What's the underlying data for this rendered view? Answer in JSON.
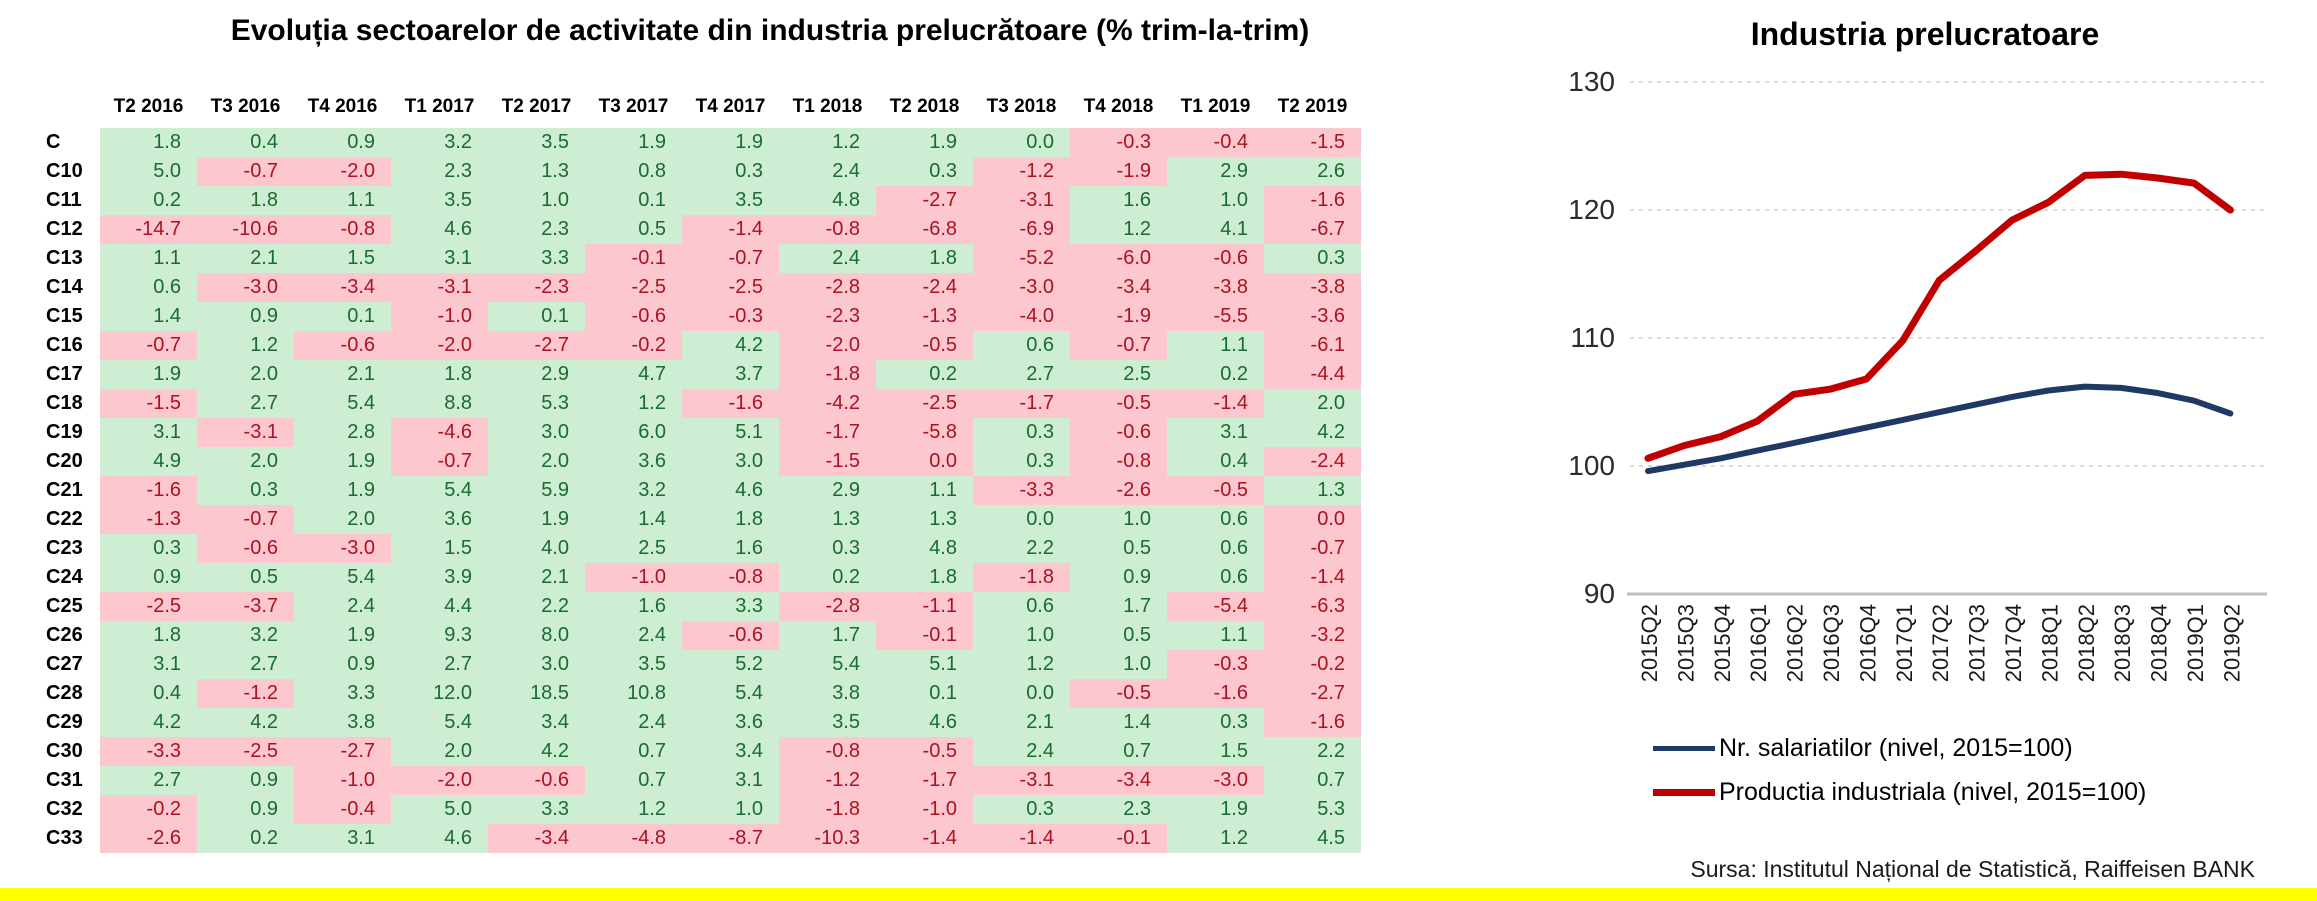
{
  "source_note": "Sursa: Institutul Național de Statistică, Raiffeisen BANK",
  "colors": {
    "positive_bg": "#cdeed3",
    "positive_text": "#1a6b2f",
    "negative_bg": "#fdc7cf",
    "negative_text": "#ac1120",
    "navy": "#1f3864",
    "red": "#c00000",
    "grid_light": "#dcdcdc",
    "axis_line": "#bfbfbf",
    "bottom_bar": "#ffff00"
  },
  "chart_data": [
    {
      "type": "table",
      "title": "Evoluția sectoarelor de activitate din industria prelucrătoare (% trim-la-trim)",
      "columns": [
        "T2 2016",
        "T3 2016",
        "T4 2016",
        "T1 2017",
        "T2 2017",
        "T3 2017",
        "T4 2017",
        "T1 2018",
        "T2 2018",
        "T3 2018",
        "T4 2018",
        "T1 2019",
        "T2 2019"
      ],
      "rows": [
        {
          "label": "C",
          "values": [
            "1.8",
            "0.4",
            "0.9",
            "3.2",
            "3.5",
            "1.9",
            "1.9",
            "1.2",
            "1.9",
            "0.0",
            "-0.3",
            "-0.4",
            "-1.5"
          ]
        },
        {
          "label": "C10",
          "values": [
            "5.0",
            "-0.7",
            "-2.0",
            "2.3",
            "1.3",
            "0.8",
            "0.3",
            "2.4",
            "0.3",
            "-1.2",
            "-1.9",
            "2.9",
            "2.6"
          ]
        },
        {
          "label": "C11",
          "values": [
            "0.2",
            "1.8",
            "1.1",
            "3.5",
            "1.0",
            "0.1",
            "3.5",
            "4.8",
            "-2.7",
            "-3.1",
            "1.6",
            "1.0",
            "-1.6"
          ]
        },
        {
          "label": "C12",
          "values": [
            "-14.7",
            "-10.6",
            "-0.8",
            "4.6",
            "2.3",
            "0.5",
            "-1.4",
            "-0.8",
            "-6.8",
            "-6.9",
            "1.2",
            "4.1",
            "-6.7"
          ]
        },
        {
          "label": "C13",
          "values": [
            "1.1",
            "2.1",
            "1.5",
            "3.1",
            "3.3",
            "-0.1",
            "-0.7",
            "2.4",
            "1.8",
            "-5.2",
            "-6.0",
            "-0.6",
            "0.3"
          ]
        },
        {
          "label": "C14",
          "values": [
            "0.6",
            "-3.0",
            "-3.4",
            "-3.1",
            "-2.3",
            "-2.5",
            "-2.5",
            "-2.8",
            "-2.4",
            "-3.0",
            "-3.4",
            "-3.8",
            "-3.8"
          ]
        },
        {
          "label": "C15",
          "values": [
            "1.4",
            "0.9",
            "0.1",
            "-1.0",
            "0.1",
            "-0.6",
            "-0.3",
            "-2.3",
            "-1.3",
            "-4.0",
            "-1.9",
            "-5.5",
            "-3.6"
          ]
        },
        {
          "label": "C16",
          "values": [
            "-0.7",
            "1.2",
            "-0.6",
            "-2.0",
            "-2.7",
            "-0.2",
            "4.2",
            "-2.0",
            "-0.5",
            "0.6",
            "-0.7",
            "1.1",
            "-6.1"
          ]
        },
        {
          "label": "C17",
          "values": [
            "1.9",
            "2.0",
            "2.1",
            "1.8",
            "2.9",
            "4.7",
            "3.7",
            "-1.8",
            "0.2",
            "2.7",
            "2.5",
            "0.2",
            "-4.4"
          ]
        },
        {
          "label": "C18",
          "values": [
            "-1.5",
            "2.7",
            "5.4",
            "8.8",
            "5.3",
            "1.2",
            "-1.6",
            "-4.2",
            "-2.5",
            "-1.7",
            "-0.5",
            "-1.4",
            "2.0"
          ]
        },
        {
          "label": "C19",
          "values": [
            "3.1",
            "-3.1",
            "2.8",
            "-4.6",
            "3.0",
            "6.0",
            "5.1",
            "-1.7",
            "-5.8",
            "0.3",
            "-0.6",
            "3.1",
            "4.2"
          ]
        },
        {
          "label": "C20",
          "values": [
            "4.9",
            "2.0",
            "1.9",
            "-0.7",
            "2.0",
            "3.6",
            "3.0",
            "-1.5",
            "-0.0",
            "0.3",
            "-0.8",
            "0.4",
            "-2.4"
          ]
        },
        {
          "label": "C21",
          "values": [
            "-1.6",
            "0.3",
            "1.9",
            "5.4",
            "5.9",
            "3.2",
            "4.6",
            "2.9",
            "1.1",
            "-3.3",
            "-2.6",
            "-0.5",
            "1.3"
          ]
        },
        {
          "label": "C22",
          "values": [
            "-1.3",
            "-0.7",
            "2.0",
            "3.6",
            "1.9",
            "1.4",
            "1.8",
            "1.3",
            "1.3",
            "0.0",
            "1.0",
            "0.6",
            "-0.0"
          ]
        },
        {
          "label": "C23",
          "values": [
            "0.3",
            "-0.6",
            "-3.0",
            "1.5",
            "4.0",
            "2.5",
            "1.6",
            "0.3",
            "4.8",
            "2.2",
            "0.5",
            "0.6",
            "-0.7"
          ]
        },
        {
          "label": "C24",
          "values": [
            "0.9",
            "0.5",
            "5.4",
            "3.9",
            "2.1",
            "-1.0",
            "-0.8",
            "0.2",
            "1.8",
            "-1.8",
            "0.9",
            "0.6",
            "-1.4"
          ]
        },
        {
          "label": "C25",
          "values": [
            "-2.5",
            "-3.7",
            "2.4",
            "4.4",
            "2.2",
            "1.6",
            "3.3",
            "-2.8",
            "-1.1",
            "0.6",
            "1.7",
            "-5.4",
            "-6.3"
          ]
        },
        {
          "label": "C26",
          "values": [
            "1.8",
            "3.2",
            "1.9",
            "9.3",
            "8.0",
            "2.4",
            "-0.6",
            "1.7",
            "-0.1",
            "1.0",
            "0.5",
            "1.1",
            "-3.2"
          ]
        },
        {
          "label": "C27",
          "values": [
            "3.1",
            "2.7",
            "0.9",
            "2.7",
            "3.0",
            "3.5",
            "5.2",
            "5.4",
            "5.1",
            "1.2",
            "1.0",
            "-0.3",
            "-0.2"
          ]
        },
        {
          "label": "C28",
          "values": [
            "0.4",
            "-1.2",
            "3.3",
            "12.0",
            "18.5",
            "10.8",
            "5.4",
            "3.8",
            "0.1",
            "0.0",
            "-0.5",
            "-1.6",
            "-2.7"
          ]
        },
        {
          "label": "C29",
          "values": [
            "4.2",
            "4.2",
            "3.8",
            "5.4",
            "3.4",
            "2.4",
            "3.6",
            "3.5",
            "4.6",
            "2.1",
            "1.4",
            "0.3",
            "-1.6"
          ]
        },
        {
          "label": "C30",
          "values": [
            "-3.3",
            "-2.5",
            "-2.7",
            "2.0",
            "4.2",
            "0.7",
            "3.4",
            "-0.8",
            "-0.5",
            "2.4",
            "0.7",
            "1.5",
            "2.2"
          ]
        },
        {
          "label": "C31",
          "values": [
            "2.7",
            "0.9",
            "-1.0",
            "-2.0",
            "-0.6",
            "0.7",
            "3.1",
            "-1.2",
            "-1.7",
            "-3.1",
            "-3.4",
            "-3.0",
            "0.7"
          ]
        },
        {
          "label": "C32",
          "values": [
            "-0.2",
            "0.9",
            "-0.4",
            "5.0",
            "3.3",
            "1.2",
            "1.0",
            "-1.8",
            "-1.0",
            "0.3",
            "2.3",
            "1.9",
            "5.3"
          ]
        },
        {
          "label": "C33",
          "values": [
            "-2.6",
            "0.2",
            "3.1",
            "4.6",
            "-3.4",
            "-4.8",
            "-8.7",
            "-10.3",
            "-1.4",
            "-1.4",
            "-0.1",
            "1.2",
            "4.5"
          ]
        }
      ]
    },
    {
      "type": "line",
      "title": "Industria prelucratoare",
      "x": [
        "2015Q2",
        "2015Q3",
        "2015Q4",
        "2016Q1",
        "2016Q2",
        "2016Q3",
        "2016Q4",
        "2017Q1",
        "2017Q2",
        "2017Q3",
        "2017Q4",
        "2018Q1",
        "2018Q2",
        "2018Q3",
        "2018Q4",
        "2019Q1",
        "2019Q2"
      ],
      "series": [
        {
          "name": "Nr. salariatilor (nivel, 2015=100)",
          "color_key": "navy",
          "values": [
            99.6,
            100.1,
            100.6,
            101.2,
            101.8,
            102.4,
            103.0,
            103.6,
            104.2,
            104.8,
            105.4,
            105.9,
            106.2,
            106.1,
            105.7,
            105.1,
            104.1
          ]
        },
        {
          "name": "Productia industriala (nivel, 2015=100)",
          "color_key": "red",
          "values": [
            100.6,
            101.6,
            102.3,
            103.5,
            105.6,
            106.0,
            106.8,
            109.8,
            114.5,
            116.8,
            119.2,
            120.6,
            122.7,
            122.8,
            122.5,
            122.1,
            120.0
          ]
        }
      ],
      "ylim": [
        90,
        130
      ],
      "yticks": [
        90,
        100,
        110,
        120,
        130
      ],
      "grid": "horizontal-dashed",
      "legend_position": "bottom"
    }
  ]
}
